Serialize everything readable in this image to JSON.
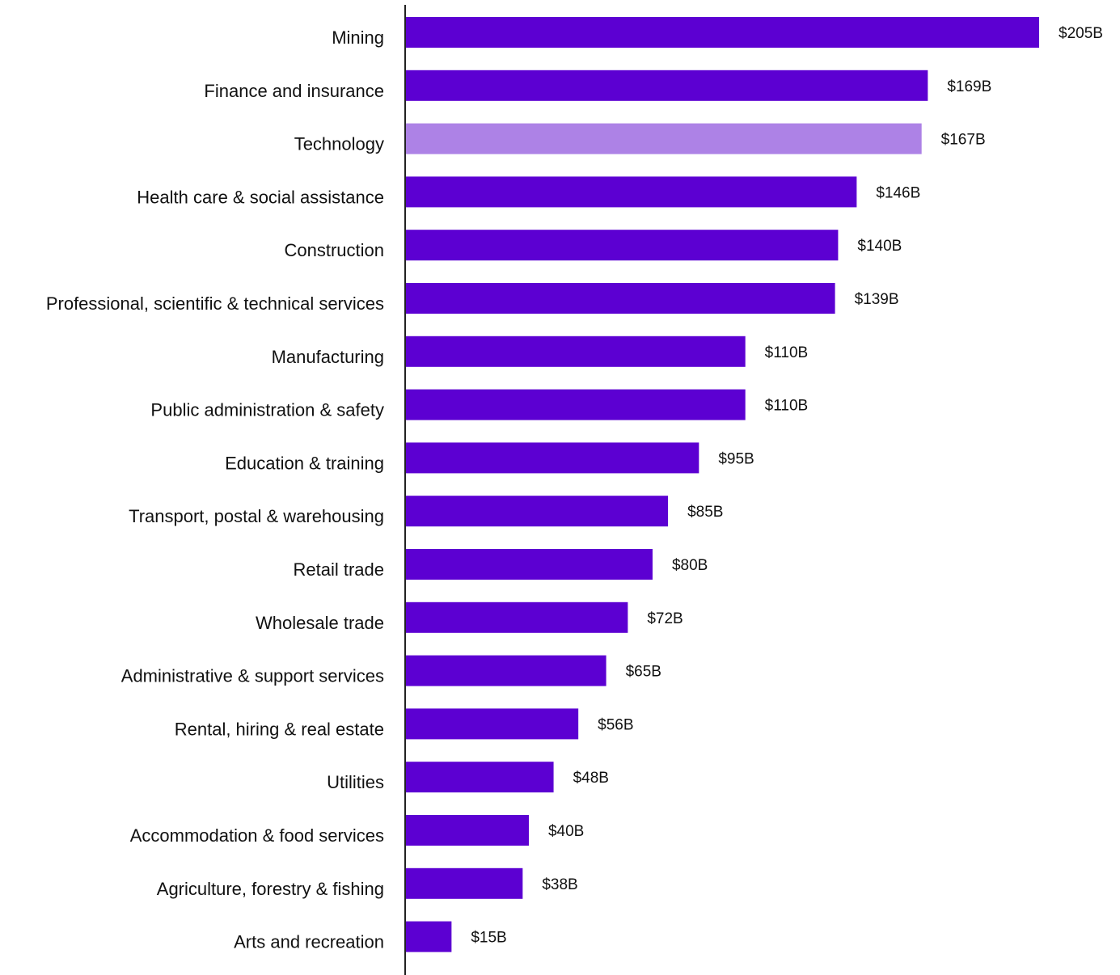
{
  "chart_data": {
    "type": "bar",
    "orientation": "horizontal",
    "title": "",
    "xlabel": "",
    "ylabel": "",
    "xlim": [
      0,
      205
    ],
    "grid": false,
    "categories": [
      "Mining",
      "Finance and insurance",
      "Technology",
      "Health care & social assistance",
      "Construction",
      "Professional, scientific & technical services",
      "Manufacturing",
      "Public administration & safety",
      "Education & training",
      "Transport, postal & warehousing",
      "Retail trade",
      "Wholesale trade",
      "Administrative & support services",
      "Rental, hiring & real estate",
      "Utilities",
      "Accommodation & food services",
      "Agriculture, forestry & fishing",
      "Arts and recreation"
    ],
    "values": [
      205,
      169,
      167,
      146,
      140,
      139,
      110,
      110,
      95,
      85,
      80,
      72,
      65,
      56,
      48,
      40,
      38,
      15
    ],
    "value_labels": [
      "$205B",
      "$169B",
      "$167B",
      "$146B",
      "$140B",
      "$139B",
      "$110B",
      "$110B",
      "$95B",
      "$85B",
      "$80B",
      "$72B",
      "$65B",
      "$56B",
      "$48B",
      "$40B",
      "$38B",
      "$15B"
    ],
    "colors": {
      "default": "#5c00d2",
      "highlight": "#ad82e6",
      "axis": "#222222"
    },
    "highlight_category": "Technology"
  }
}
